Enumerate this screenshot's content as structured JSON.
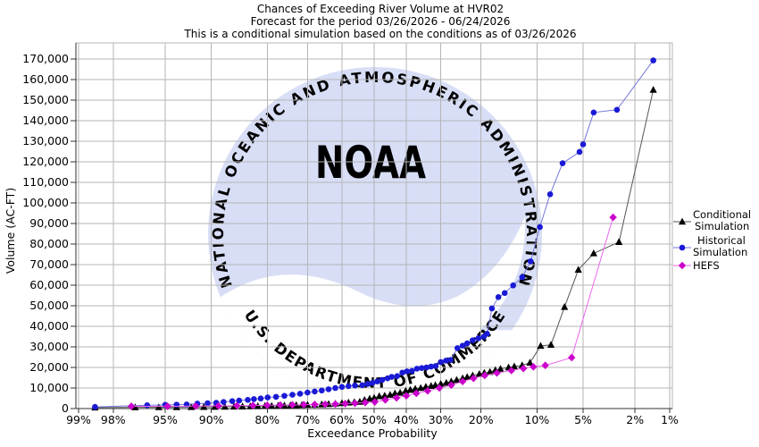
{
  "title": {
    "line1": "Chances of Exceeding River Volume at HVR02",
    "line2": "Forecast for the period 03/26/2026 - 06/24/2026",
    "line3": "This is a conditional simulation based on the conditions as of 03/26/2026"
  },
  "watermark": {
    "top_arc": "NATIONAL OCEANIC AND ATMOSPHERIC ADMINISTRATION",
    "center": "NOAA",
    "bottom_arc": "U.S. DEPARTMENT OF COMMERCE",
    "circle_color": "#d8def6",
    "arc_text_color": "#b9c3ee",
    "gull_color": "#ffffff"
  },
  "colors": {
    "background": "#ffffff",
    "grid": "#b5b5b5",
    "axis": "#333333",
    "text": "#000000"
  },
  "legend": {
    "items": [
      {
        "label": "Conditional Simulation",
        "lines": [
          "Conditional",
          "Simulation"
        ],
        "marker": "triangle",
        "color": "#000000",
        "line_color": "#555555"
      },
      {
        "label": "Historical Simulation",
        "lines": [
          "Historical",
          "Simulation"
        ],
        "marker": "circle",
        "color": "#1a1ad6",
        "line_color": "#7576dd"
      },
      {
        "label": "HEFS",
        "lines": [
          "HEFS"
        ],
        "marker": "diamond",
        "color": "#cc00cc",
        "line_color": "#ee66ee"
      }
    ]
  },
  "chart_data": {
    "type": "line",
    "title": "Chances of Exceeding River Volume at HVR02",
    "xlabel": "Exceedance Probability",
    "ylabel": "Volume (AC-FT)",
    "x_scale": "probit",
    "x_direction": "descending",
    "grid": true,
    "legend_position": "right",
    "ylim": [
      0,
      170000
    ],
    "x_ticks": [
      {
        "label": "99%",
        "p": 99
      },
      {
        "label": "98%",
        "p": 98
      },
      {
        "label": "95%",
        "p": 95
      },
      {
        "label": "90%",
        "p": 90
      },
      {
        "label": "80%",
        "p": 80
      },
      {
        "label": "70%",
        "p": 70
      },
      {
        "label": "60%",
        "p": 60
      },
      {
        "label": "50%",
        "p": 50
      },
      {
        "label": "40%",
        "p": 40
      },
      {
        "label": "30%",
        "p": 30
      },
      {
        "label": "20%",
        "p": 20
      },
      {
        "label": "10%",
        "p": 10
      },
      {
        "label": "5%",
        "p": 5
      },
      {
        "label": "2%",
        "p": 2
      },
      {
        "label": "1%",
        "p": 1
      }
    ],
    "y_ticks": [
      {
        "label": "0",
        "v": 0
      },
      {
        "label": "10,000",
        "v": 10000
      },
      {
        "label": "20,000",
        "v": 20000
      },
      {
        "label": "30,000",
        "v": 30000
      },
      {
        "label": "40,000",
        "v": 40000
      },
      {
        "label": "50,000",
        "v": 50000
      },
      {
        "label": "60,000",
        "v": 60000
      },
      {
        "label": "70,000",
        "v": 70000
      },
      {
        "label": "80,000",
        "v": 80000
      },
      {
        "label": "90,000",
        "v": 90000
      },
      {
        "label": "100,000",
        "v": 100000
      },
      {
        "label": "110,000",
        "v": 110000
      },
      {
        "label": "120,000",
        "v": 120000
      },
      {
        "label": "130,000",
        "v": 130000
      },
      {
        "label": "140,000",
        "v": 140000
      },
      {
        "label": "150,000",
        "v": 150000
      },
      {
        "label": "160,000",
        "v": 160000
      },
      {
        "label": "170,000",
        "v": 170000
      }
    ],
    "series": [
      {
        "name": "Conditional Simulation",
        "marker": "triangle",
        "color": "#000000",
        "line_color": "#555555",
        "points": [
          [
            98.6,
            500
          ],
          [
            97,
            600
          ],
          [
            95.5,
            650
          ],
          [
            94,
            700
          ],
          [
            92.5,
            750
          ],
          [
            91,
            800
          ],
          [
            89.5,
            850
          ],
          [
            88,
            900
          ],
          [
            86.5,
            950
          ],
          [
            85,
            1000
          ],
          [
            83.5,
            1100
          ],
          [
            82,
            1150
          ],
          [
            80.5,
            1250
          ],
          [
            79,
            1300
          ],
          [
            77.5,
            1400
          ],
          [
            76,
            1450
          ],
          [
            74.5,
            1550
          ],
          [
            73,
            1650
          ],
          [
            71.5,
            1750
          ],
          [
            70,
            1850
          ],
          [
            68,
            1950
          ],
          [
            66,
            2050
          ],
          [
            64,
            2200
          ],
          [
            62,
            2400
          ],
          [
            60,
            2650
          ],
          [
            58,
            2900
          ],
          [
            56.2,
            3100
          ],
          [
            54.5,
            3300
          ],
          [
            53,
            4200
          ],
          [
            51.4,
            4800
          ],
          [
            50,
            5200
          ],
          [
            48.4,
            6000
          ],
          [
            46.7,
            6250
          ],
          [
            45,
            6700
          ],
          [
            43.5,
            7400
          ],
          [
            41.9,
            7700
          ],
          [
            40.2,
            8600
          ],
          [
            38.8,
            9100
          ],
          [
            37.3,
            9600
          ],
          [
            35.7,
            10000
          ],
          [
            34.2,
            10600
          ],
          [
            32.7,
            11000
          ],
          [
            31.5,
            11400
          ],
          [
            30,
            12000
          ],
          [
            28.5,
            12500
          ],
          [
            27.2,
            13200
          ],
          [
            25.8,
            13900
          ],
          [
            24.3,
            14700
          ],
          [
            23.2,
            15300
          ],
          [
            21.9,
            16100
          ],
          [
            20.4,
            16800
          ],
          [
            19.3,
            17300
          ],
          [
            18.1,
            17800
          ],
          [
            17,
            18700
          ],
          [
            16,
            19300
          ],
          [
            14.5,
            20000
          ],
          [
            13.5,
            20500
          ],
          [
            12.2,
            21000
          ],
          [
            11,
            22300
          ],
          [
            9.5,
            30500
          ],
          [
            8.2,
            31000
          ],
          [
            6.7,
            49400
          ],
          [
            5.4,
            67500
          ],
          [
            4.2,
            75500
          ],
          [
            2.7,
            81000
          ],
          [
            1.4,
            155000
          ]
        ]
      },
      {
        "name": "Historical Simulation",
        "marker": "circle",
        "color": "#1a1ad6",
        "line_color": "#7576dd",
        "points": [
          [
            98.6,
            800
          ],
          [
            96.3,
            1600
          ],
          [
            95,
            1800
          ],
          [
            94,
            1900
          ],
          [
            93,
            2000
          ],
          [
            91.8,
            2400
          ],
          [
            90.5,
            2600
          ],
          [
            89.3,
            2800
          ],
          [
            88.2,
            3200
          ],
          [
            86.8,
            3600
          ],
          [
            85.6,
            3900
          ],
          [
            84,
            4200
          ],
          [
            82.8,
            4600
          ],
          [
            81.4,
            4900
          ],
          [
            79.9,
            5400
          ],
          [
            78,
            5700
          ],
          [
            76,
            6200
          ],
          [
            74,
            6700
          ],
          [
            72,
            7200
          ],
          [
            70,
            7800
          ],
          [
            68,
            8300
          ],
          [
            66,
            8800
          ],
          [
            64,
            9400
          ],
          [
            62,
            10000
          ],
          [
            60,
            10500
          ],
          [
            58,
            10900
          ],
          [
            56,
            11200
          ],
          [
            53.7,
            11400
          ],
          [
            52,
            12000
          ],
          [
            50.5,
            12500
          ],
          [
            49,
            13200
          ],
          [
            47.5,
            13900
          ],
          [
            45.8,
            14700
          ],
          [
            44.5,
            15400
          ],
          [
            42.8,
            15800
          ],
          [
            41.2,
            17500
          ],
          [
            39.8,
            18100
          ],
          [
            38.3,
            18300
          ],
          [
            36.8,
            19400
          ],
          [
            35.4,
            19700
          ],
          [
            34,
            20000
          ],
          [
            32.7,
            20400
          ],
          [
            31.4,
            20700
          ],
          [
            30,
            22600
          ],
          [
            28.6,
            23300
          ],
          [
            27.4,
            23600
          ],
          [
            25.6,
            29400
          ],
          [
            24.3,
            30600
          ],
          [
            23.2,
            31700
          ],
          [
            21.9,
            33200
          ],
          [
            20.6,
            34200
          ],
          [
            19.4,
            35000
          ],
          [
            18.7,
            36400
          ],
          [
            17.7,
            48700
          ],
          [
            16.4,
            54200
          ],
          [
            15.2,
            56200
          ],
          [
            13.7,
            59900
          ],
          [
            12.2,
            63900
          ],
          [
            10.9,
            71600
          ],
          [
            9.6,
            88300
          ],
          [
            8.3,
            104200
          ],
          [
            6.9,
            119300
          ],
          [
            5.3,
            124800
          ],
          [
            5.0,
            128500
          ],
          [
            4.2,
            144000
          ],
          [
            2.8,
            145300
          ],
          [
            1.4,
            169300
          ]
        ]
      },
      {
        "name": "HEFS",
        "marker": "diamond",
        "color": "#cc00cc",
        "line_color": "#ee66ee",
        "points": [
          [
            97.2,
            1100
          ],
          [
            94.8,
            1100
          ],
          [
            92,
            1200
          ],
          [
            89,
            1300
          ],
          [
            86,
            1400
          ],
          [
            83,
            1500
          ],
          [
            80,
            1600
          ],
          [
            77,
            1700
          ],
          [
            74,
            1800
          ],
          [
            71,
            1900
          ],
          [
            68,
            2000
          ],
          [
            65,
            2100
          ],
          [
            62,
            2200
          ],
          [
            59,
            2400
          ],
          [
            56,
            2600
          ],
          [
            52.8,
            2900
          ],
          [
            49.8,
            3200
          ],
          [
            46.5,
            4200
          ],
          [
            43,
            5200
          ],
          [
            40,
            6200
          ],
          [
            37,
            7400
          ],
          [
            33.7,
            8600
          ],
          [
            30.4,
            10000
          ],
          [
            27.2,
            11400
          ],
          [
            24.3,
            13200
          ],
          [
            21.7,
            14700
          ],
          [
            19.2,
            16100
          ],
          [
            16.7,
            17300
          ],
          [
            14,
            18500
          ],
          [
            12,
            19500
          ],
          [
            10.5,
            20300
          ],
          [
            8.9,
            21000
          ],
          [
            6,
            24800
          ],
          [
            3,
            93000
          ]
        ]
      }
    ]
  }
}
